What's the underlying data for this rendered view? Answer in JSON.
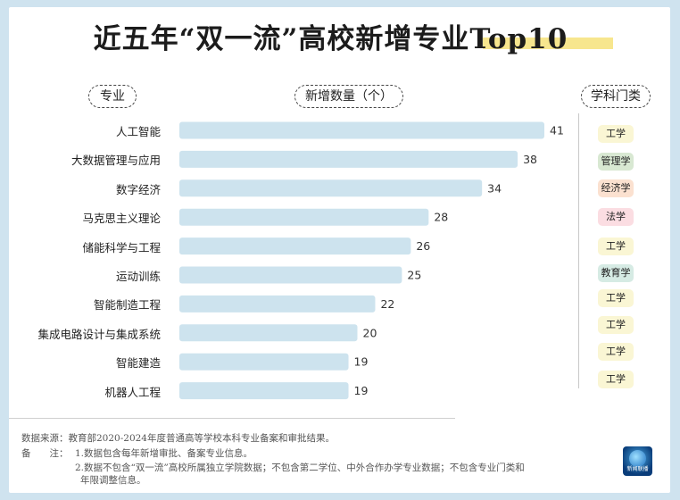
{
  "title": "近五年“双一流”高校新增专业Top10",
  "headers": {
    "major": "专业",
    "count": "新增数量（个）",
    "discipline": "学科门类"
  },
  "chart_data": {
    "type": "bar",
    "orientation": "horizontal",
    "title": "近五年“双一流”高校新增专业Top10",
    "xlabel": "新增数量（个）",
    "ylabel": "专业",
    "categories": [
      "人工智能",
      "大数据管理与应用",
      "数字经济",
      "马克思主义理论",
      "储能科学与工程",
      "运动训练",
      "智能制造工程",
      "集成电路设计与集成系统",
      "智能建造",
      "机器人工程"
    ],
    "values": [
      41,
      38,
      34,
      28,
      26,
      25,
      22,
      20,
      19,
      19
    ],
    "disciplines": [
      "工学",
      "管理学",
      "经济学",
      "法学",
      "工学",
      "教育学",
      "工学",
      "工学",
      "工学",
      "工学"
    ],
    "xlim": [
      0,
      41
    ],
    "grid": false,
    "bar_color": "#cde3ee",
    "data_labels": true
  },
  "discipline_colors": {
    "工学": "#faf6d4",
    "管理学": "#d8e8d2",
    "经济学": "#fbe1d0",
    "法学": "#fbdde2",
    "教育学": "#d6ebe4"
  },
  "notes": {
    "source": "数据来源：教育部2020-2024年度普通高等学校本科专业备案和审批结果。",
    "remark_label": "备　　注：",
    "remark_1": "1.数据包含每年新增审批、备案专业信息。",
    "remark_2a": "2.数据不包含“双一流”高校所属独立学院数据；不包含第二学位、中外合作办学专业数据；不包含专业门类和",
    "remark_2b": "年限调整信息。"
  },
  "logo": {
    "name": "新闻联播",
    "icon": "globe-logo-icon"
  }
}
